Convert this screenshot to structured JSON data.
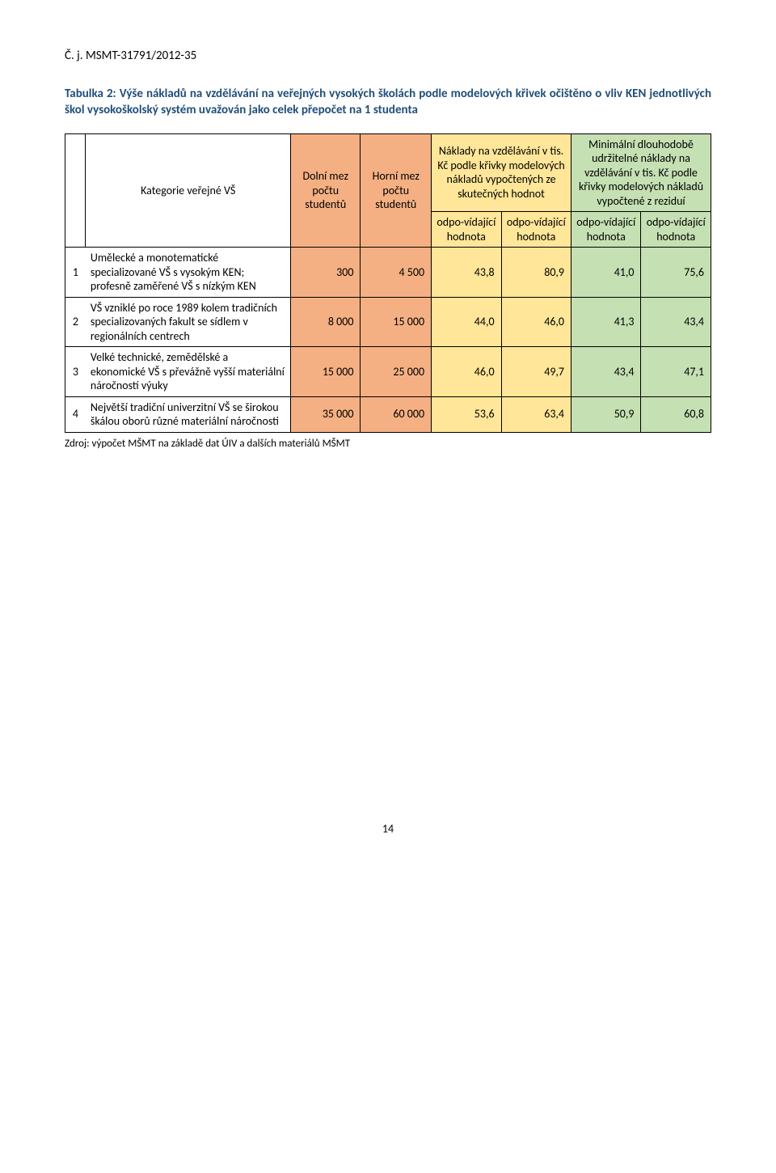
{
  "doc_header": "Č. j. MSMT-31791/2012-35",
  "caption": "Tabulka 2: Výše nákladů na vzdělávání na veřejných vysokých školách podle modelových křivek očištěno o vliv KEN jednotlivých škol vysokoškolský systém uvažován jako celek přepočet na 1 studenta",
  "headers": {
    "kategorie": "Kategorie veřejné VŠ",
    "dolni": "Dolní mez počtu studentů",
    "horni": "Horní mez počtu studentů",
    "nakl": "Náklady na vzdělávání v tis. Kč podle křivky modelových nákladů vypočtených ze skutečných hodnot",
    "min": "Minimální dlouhodobě udržitelné náklady na vzdělávání v tis. Kč podle křivky modelových nákladů vypočtené z reziduí",
    "odp": "odpo-vídající hodnota"
  },
  "rows": [
    {
      "idx": "1",
      "cat": "Umělecké a monotematické specializované VŠ s vysokým KEN; profesně zaměřené VŠ s nízkým KEN",
      "dolni": "300",
      "horni": "4 500",
      "v1": "43,8",
      "v2": "80,9",
      "v3": "41,0",
      "v4": "75,6"
    },
    {
      "idx": "2",
      "cat": "VŠ vzniklé po roce 1989 kolem tradičních specializovaných fakult se sídlem v regionálních centrech",
      "dolni": "8 000",
      "horni": "15 000",
      "v1": "44,0",
      "v2": "46,0",
      "v3": "41,3",
      "v4": "43,4"
    },
    {
      "idx": "3",
      "cat": "Velké technické, zemědělské a ekonomické VŠ s převážně vyšší materiální náročností výuky",
      "dolni": "15 000",
      "horni": "25 000",
      "v1": "46,0",
      "v2": "49,7",
      "v3": "43,4",
      "v4": "47,1"
    },
    {
      "idx": "4",
      "cat": "Největší tradiční univerzitní VŠ se širokou škálou oborů různé materiální náročnosti",
      "dolni": "35 000",
      "horni": "60 000",
      "v1": "53,6",
      "v2": "63,4",
      "v3": "50,9",
      "v4": "60,8"
    }
  ],
  "source": "Zdroj: výpočet MŠMT na základě dat ÚIV a dalších materiálů MŠMT",
  "page_number": "14",
  "colors": {
    "orange": "#f4b083",
    "yellow": "#ffe699",
    "green": "#c5e0b3",
    "caption_blue": "#1f4e79",
    "border": "#000000",
    "text": "#000000",
    "bg": "#ffffff"
  }
}
